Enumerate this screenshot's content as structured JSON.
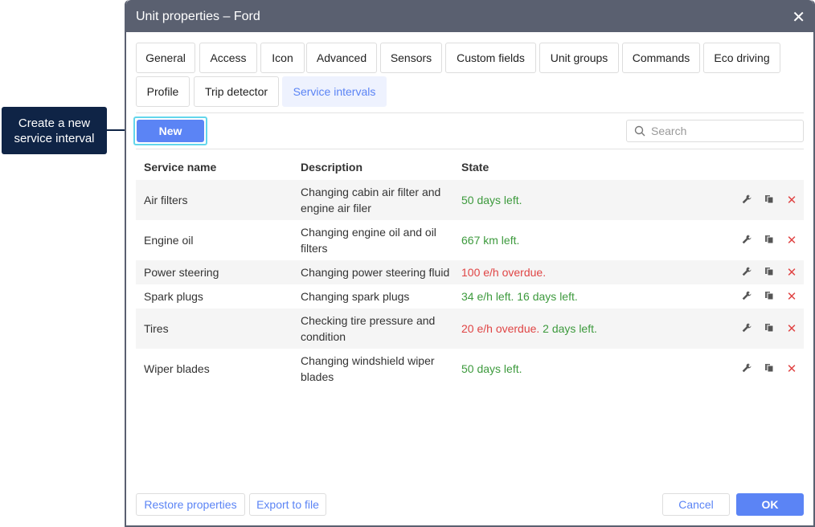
{
  "callout": {
    "line1": "Create a new",
    "line2": "service interval"
  },
  "dialog": {
    "title": "Unit properties – Ford"
  },
  "tabs": [
    {
      "label": "General"
    },
    {
      "label": "Access"
    },
    {
      "label": "Icon"
    },
    {
      "label": "Advanced"
    },
    {
      "label": "Sensors"
    },
    {
      "label": "Custom fields"
    },
    {
      "label": "Unit groups"
    },
    {
      "label": "Commands"
    },
    {
      "label": "Eco driving"
    },
    {
      "label": "Profile"
    },
    {
      "label": "Trip detector"
    },
    {
      "label": "Service intervals",
      "active": true
    }
  ],
  "toolbar": {
    "new_label": "New",
    "search_placeholder": "Search"
  },
  "table": {
    "headers": [
      "Service name",
      "Description",
      "State"
    ],
    "rows": [
      {
        "name": "Air filters",
        "description": "Changing cabin air filter and engine air filer",
        "state": [
          {
            "text": "50 days left.",
            "status": "ok"
          }
        ]
      },
      {
        "name": "Engine oil",
        "description": "Changing engine oil and oil filters",
        "state": [
          {
            "text": "667 km left.",
            "status": "ok"
          }
        ]
      },
      {
        "name": "Power steering",
        "description": "Changing power steering fluid",
        "state": [
          {
            "text": "100 e/h overdue.",
            "status": "overdue"
          }
        ]
      },
      {
        "name": "Spark plugs",
        "description": "Changing spark plugs",
        "state": [
          {
            "text": "34 e/h left. 16 days left.",
            "status": "ok"
          }
        ]
      },
      {
        "name": "Tires",
        "description": "Checking tire pressure and condition",
        "state": [
          {
            "text": "20 e/h overdue.",
            "status": "overdue"
          },
          {
            "text": " 2 days left.",
            "status": "ok"
          }
        ]
      },
      {
        "name": "Wiper blades",
        "description": "Changing windshield wiper blades",
        "state": [
          {
            "text": "50 days left.",
            "status": "ok"
          }
        ]
      }
    ]
  },
  "footer": {
    "restore": "Restore properties",
    "export": "Export to file",
    "cancel": "Cancel",
    "ok": "OK"
  },
  "colors": {
    "accent": "#5b84f5",
    "ok": "#3d9a3d",
    "overdue": "#e04545",
    "titlebar": "#5a6070",
    "callout": "#0f2446"
  }
}
